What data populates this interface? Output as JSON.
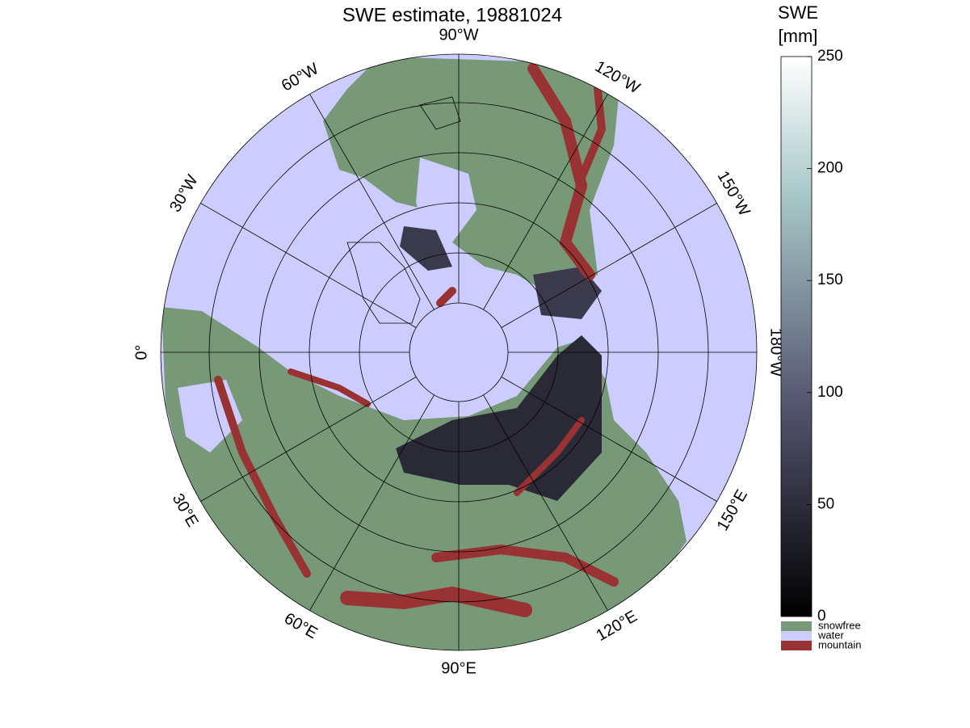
{
  "title": "SWE estimate, 19881024",
  "longitude_labels": [
    "90°W",
    "120°W",
    "150°W",
    "180°W",
    "150°E",
    "120°E",
    "90°E",
    "60°E",
    "30°E",
    "0°",
    "30°W",
    "60°W"
  ],
  "colorbar": {
    "label": [
      "SWE",
      "[mm]"
    ],
    "lim": [
      0,
      250
    ],
    "ticks": [
      0,
      50,
      100,
      150,
      200,
      250
    ]
  },
  "legend": [
    {
      "name": "snowfree",
      "color": "#779977"
    },
    {
      "name": "water",
      "color": "#ccccff"
    },
    {
      "name": "mountain",
      "color": "#993333"
    }
  ]
}
